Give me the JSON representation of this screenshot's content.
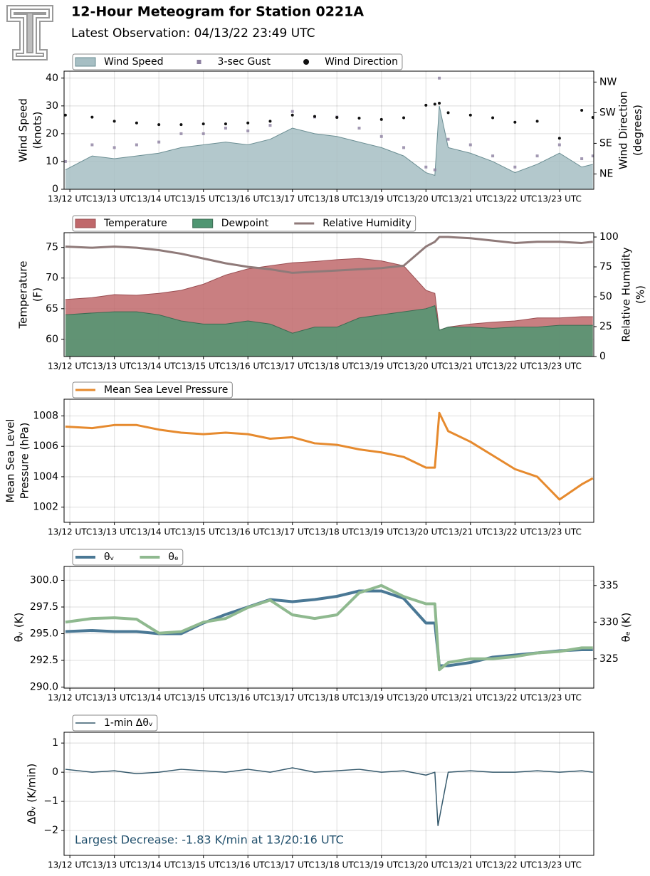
{
  "title": "12-Hour Meteogram for Station 0221A",
  "subtitle": "Latest Observation: 04/13/22 23:49 UTC",
  "chart_data": [
    {
      "type": "area",
      "ylabel": [
        "Wind Speed",
        "(knots)"
      ],
      "y2label": [
        "Wind Direction",
        "(degrees)"
      ],
      "x": [
        11.9,
        12.5,
        13,
        13.5,
        14,
        14.5,
        15,
        15.5,
        16,
        16.5,
        17,
        17.5,
        18,
        18.5,
        19,
        19.5,
        20,
        20.2,
        20.3,
        20.5,
        21,
        21.5,
        22,
        22.5,
        23,
        23.5,
        23.75
      ],
      "xlim": [
        11.87,
        23.77
      ],
      "xticks": [
        {
          "value": 12,
          "label": "13/12 UTC"
        },
        {
          "value": 13,
          "label": "13/13 UTC"
        },
        {
          "value": 14,
          "label": "13/14 UTC"
        },
        {
          "value": 15,
          "label": "13/15 UTC"
        },
        {
          "value": 16,
          "label": "13/16 UTC"
        },
        {
          "value": 17,
          "label": "13/17 UTC"
        },
        {
          "value": 18,
          "label": "13/18 UTC"
        },
        {
          "value": 19,
          "label": "13/19 UTC"
        },
        {
          "value": 20,
          "label": "13/20 UTC"
        },
        {
          "value": 21,
          "label": "13/21 UTC"
        },
        {
          "value": 22,
          "label": "13/22 UTC"
        },
        {
          "value": 23,
          "label": "13/23 UTC"
        }
      ],
      "ylim": [
        0,
        42.5
      ],
      "yticks": [
        0,
        10,
        20,
        30,
        40
      ],
      "y2lim": [
        0,
        347
      ],
      "y2ticks": [
        {
          "value": 45,
          "label": "NE"
        },
        {
          "value": 135,
          "label": "SE"
        },
        {
          "value": 225,
          "label": "SW"
        },
        {
          "value": 315,
          "label": "NW"
        }
      ],
      "grid": true,
      "series": [
        {
          "name": "Wind Speed",
          "kind": "area",
          "color": "#a6bec3",
          "edgecolor": "#6b8e93",
          "values": [
            7,
            12,
            11,
            12,
            13,
            15,
            16,
            17,
            16,
            18,
            22,
            20,
            19,
            17,
            15,
            12,
            6,
            5,
            30,
            15,
            13,
            10,
            6,
            9,
            13,
            8,
            9
          ]
        },
        {
          "name": "3-sec Gust",
          "kind": "scatter",
          "marker": "square",
          "color": "#8c7fa0",
          "values": [
            10,
            16,
            15,
            16,
            17,
            20,
            20,
            22,
            21,
            23,
            28,
            26,
            26,
            22,
            19,
            15,
            8,
            7,
            40,
            18,
            16,
            12,
            8,
            12,
            16,
            11,
            12
          ]
        },
        {
          "name": "Wind Direction",
          "kind": "scatter",
          "marker": "circle",
          "color": "#111111",
          "axis": "y2",
          "values": [
            218,
            212,
            200,
            195,
            190,
            190,
            192,
            192,
            195,
            200,
            218,
            214,
            211,
            209,
            205,
            210,
            247,
            250,
            253,
            225,
            218,
            210,
            197,
            200,
            150,
            232,
            211
          ]
        }
      ]
    },
    {
      "type": "area",
      "ylabel": [
        "Temperature",
        "(F)"
      ],
      "y2label": [
        "Relative Humidity",
        "(%)"
      ],
      "x": [
        11.9,
        12.5,
        13,
        13.5,
        14,
        14.5,
        15,
        15.5,
        16,
        16.5,
        17,
        17.5,
        18,
        18.5,
        19,
        19.5,
        20,
        20.2,
        20.3,
        20.5,
        21,
        21.5,
        22,
        22.5,
        23,
        23.5,
        23.75
      ],
      "xlim": [
        11.87,
        23.77
      ],
      "xticks": [
        {
          "value": 12,
          "label": "13/12 UTC"
        },
        {
          "value": 13,
          "label": "13/13 UTC"
        },
        {
          "value": 14,
          "label": "13/14 UTC"
        },
        {
          "value": 15,
          "label": "13/15 UTC"
        },
        {
          "value": 16,
          "label": "13/16 UTC"
        },
        {
          "value": 17,
          "label": "13/17 UTC"
        },
        {
          "value": 18,
          "label": "13/18 UTC"
        },
        {
          "value": 19,
          "label": "13/19 UTC"
        },
        {
          "value": 20,
          "label": "13/20 UTC"
        },
        {
          "value": 21,
          "label": "13/21 UTC"
        },
        {
          "value": 22,
          "label": "13/22 UTC"
        },
        {
          "value": 23,
          "label": "13/23 UTC"
        }
      ],
      "ylim": [
        57.2,
        77.4
      ],
      "yticks": [
        60,
        65,
        70,
        75
      ],
      "y2lim": [
        0,
        103.6
      ],
      "y2ticks": [
        0,
        25,
        50,
        75,
        100
      ],
      "grid": true,
      "series": [
        {
          "name": "Temperature",
          "kind": "area",
          "color": "#c0686b",
          "edgecolor": "#9a4e52",
          "values": [
            66.5,
            66.8,
            67.3,
            67.2,
            67.5,
            68.0,
            69.0,
            70.5,
            71.5,
            72.0,
            72.5,
            72.7,
            73.0,
            73.2,
            72.8,
            72.0,
            68.0,
            67.5,
            61.5,
            62.0,
            62.5,
            62.8,
            63.0,
            63.5,
            63.5,
            63.7,
            63.7
          ]
        },
        {
          "name": "Dewpoint",
          "kind": "area",
          "color": "#4f9672",
          "edgecolor": "#3a6b52",
          "values": [
            64.0,
            64.3,
            64.5,
            64.5,
            64.0,
            63.0,
            62.5,
            62.5,
            63.0,
            62.5,
            61.0,
            62.0,
            62.0,
            63.5,
            64.0,
            64.5,
            65.0,
            65.5,
            61.5,
            62.0,
            62.0,
            61.8,
            62.0,
            62.0,
            62.3,
            62.3,
            62.3
          ]
        },
        {
          "name": "Relative Humidity",
          "kind": "line",
          "color": "#8f7a79",
          "axis": "y2",
          "values": [
            92,
            91,
            92,
            91,
            89,
            86,
            82,
            78,
            75,
            73,
            70,
            71,
            72,
            73,
            74,
            76,
            92,
            96,
            100,
            100,
            99,
            97,
            95,
            96,
            96,
            95,
            96
          ]
        }
      ]
    },
    {
      "type": "line",
      "ylabel": [
        "Mean Sea Level",
        "Pressure (hPa)"
      ],
      "x": [
        11.9,
        12.5,
        13,
        13.5,
        14,
        14.5,
        15,
        15.5,
        16,
        16.5,
        17,
        17.5,
        18,
        18.5,
        19,
        19.5,
        20,
        20.2,
        20.3,
        20.5,
        21,
        21.5,
        22,
        22.5,
        23,
        23.5,
        23.75
      ],
      "xlim": [
        11.87,
        23.77
      ],
      "xticks": [
        {
          "value": 12,
          "label": "13/12 UTC"
        },
        {
          "value": 13,
          "label": "13/13 UTC"
        },
        {
          "value": 14,
          "label": "13/14 UTC"
        },
        {
          "value": 15,
          "label": "13/15 UTC"
        },
        {
          "value": 16,
          "label": "13/16 UTC"
        },
        {
          "value": 17,
          "label": "13/17 UTC"
        },
        {
          "value": 18,
          "label": "13/18 UTC"
        },
        {
          "value": 19,
          "label": "13/19 UTC"
        },
        {
          "value": 20,
          "label": "13/20 UTC"
        },
        {
          "value": 21,
          "label": "13/21 UTC"
        },
        {
          "value": 22,
          "label": "13/22 UTC"
        },
        {
          "value": 23,
          "label": "13/23 UTC"
        }
      ],
      "ylim": [
        1001.0,
        1009.1
      ],
      "yticks": [
        1002,
        1004,
        1006,
        1008
      ],
      "grid": true,
      "series": [
        {
          "name": "Mean Sea Level Pressure",
          "kind": "line",
          "color": "#e68a2e",
          "values": [
            1007.3,
            1007.2,
            1007.4,
            1007.4,
            1007.1,
            1006.9,
            1006.8,
            1006.9,
            1006.8,
            1006.5,
            1006.6,
            1006.2,
            1006.1,
            1005.8,
            1005.6,
            1005.3,
            1004.6,
            1004.6,
            1008.2,
            1007.0,
            1006.3,
            1005.4,
            1004.5,
            1004.0,
            1002.5,
            1003.5,
            1003.9
          ]
        }
      ]
    },
    {
      "type": "line",
      "ylabel": [
        "θᵥ (K)"
      ],
      "y2label": [
        "θₑ (K)"
      ],
      "x": [
        11.9,
        12.5,
        13,
        13.5,
        14,
        14.5,
        15,
        15.5,
        16,
        16.5,
        17,
        17.5,
        18,
        18.5,
        19,
        19.5,
        20,
        20.2,
        20.3,
        20.5,
        21,
        21.5,
        22,
        22.5,
        23,
        23.5,
        23.75
      ],
      "xlim": [
        11.87,
        23.77
      ],
      "xticks": [
        {
          "value": 12,
          "label": "13/12 UTC"
        },
        {
          "value": 13,
          "label": "13/13 UTC"
        },
        {
          "value": 14,
          "label": "13/14 UTC"
        },
        {
          "value": 15,
          "label": "13/15 UTC"
        },
        {
          "value": 16,
          "label": "13/16 UTC"
        },
        {
          "value": 17,
          "label": "13/17 UTC"
        },
        {
          "value": 18,
          "label": "13/18 UTC"
        },
        {
          "value": 19,
          "label": "13/19 UTC"
        },
        {
          "value": 20,
          "label": "13/20 UTC"
        },
        {
          "value": 21,
          "label": "13/21 UTC"
        },
        {
          "value": 22,
          "label": "13/22 UTC"
        },
        {
          "value": 23,
          "label": "13/23 UTC"
        }
      ],
      "ylim": [
        289.9,
        301.3
      ],
      "yticks": [
        {
          "value": 290,
          "label": "290.0"
        },
        {
          "value": 292.5,
          "label": "292.5"
        },
        {
          "value": 295,
          "label": "295.0"
        },
        {
          "value": 297.5,
          "label": "297.5"
        },
        {
          "value": 300,
          "label": "300.0"
        }
      ],
      "y2lim": [
        321.0,
        337.6
      ],
      "y2ticks": [
        325,
        330,
        335
      ],
      "grid": true,
      "series": [
        {
          "name": "θᵥ",
          "kind": "line",
          "color": "#4a7895",
          "values": [
            295.2,
            295.3,
            295.2,
            295.2,
            295.0,
            295.0,
            296.0,
            296.8,
            297.5,
            298.2,
            298.0,
            298.2,
            298.5,
            299.0,
            299.0,
            298.3,
            296.0,
            296.0,
            292.0,
            292.0,
            292.3,
            292.8,
            293.0,
            293.2,
            293.4,
            293.5,
            293.5
          ]
        },
        {
          "name": "θₑ",
          "kind": "line",
          "color": "#8fb98f",
          "axis": "y2",
          "values": [
            330,
            330.5,
            330.6,
            330.4,
            328.5,
            328.7,
            330,
            330.5,
            332,
            333,
            331,
            330.5,
            331,
            334,
            335,
            333.5,
            332.5,
            332.5,
            323.5,
            324.5,
            325,
            325,
            325.3,
            325.8,
            326,
            326.5,
            326.5
          ]
        }
      ]
    },
    {
      "type": "line",
      "ylabel": [
        "Δθᵥ (K/min)"
      ],
      "annotation": "Largest Decrease: -1.83 K/min at 13/20:16 UTC",
      "x": [
        11.9,
        12.5,
        13,
        13.5,
        14,
        14.5,
        15,
        15.5,
        16,
        16.5,
        17,
        17.5,
        18,
        18.5,
        19,
        19.5,
        20,
        20.2,
        20.27,
        20.5,
        21,
        21.5,
        22,
        22.5,
        23,
        23.5,
        23.75
      ],
      "xlim": [
        11.87,
        23.77
      ],
      "xticks": [
        {
          "value": 12,
          "label": "13/12 UTC"
        },
        {
          "value": 13,
          "label": "13/13 UTC"
        },
        {
          "value": 14,
          "label": "13/14 UTC"
        },
        {
          "value": 15,
          "label": "13/15 UTC"
        },
        {
          "value": 16,
          "label": "13/16 UTC"
        },
        {
          "value": 17,
          "label": "13/17 UTC"
        },
        {
          "value": 18,
          "label": "13/18 UTC"
        },
        {
          "value": 19,
          "label": "13/19 UTC"
        },
        {
          "value": 20,
          "label": "13/20 UTC"
        },
        {
          "value": 21,
          "label": "13/21 UTC"
        },
        {
          "value": 22,
          "label": "13/22 UTC"
        },
        {
          "value": 23,
          "label": "13/23 UTC"
        }
      ],
      "ylim": [
        -2.85,
        1.37
      ],
      "yticks": [
        {
          "value": -2,
          "label": "−2"
        },
        {
          "value": -1,
          "label": "−1"
        },
        0,
        1
      ],
      "grid": true,
      "series": [
        {
          "name": "1-min Δθᵥ",
          "kind": "line",
          "color": "#35596c",
          "values": [
            0.1,
            0,
            0.05,
            -0.05,
            0,
            0.1,
            0.05,
            0,
            0.1,
            0,
            0.15,
            0,
            0.05,
            0.1,
            0,
            0.05,
            -0.1,
            0,
            -1.83,
            0,
            0.05,
            0,
            0,
            0.05,
            0,
            0.05,
            0
          ]
        }
      ]
    }
  ]
}
